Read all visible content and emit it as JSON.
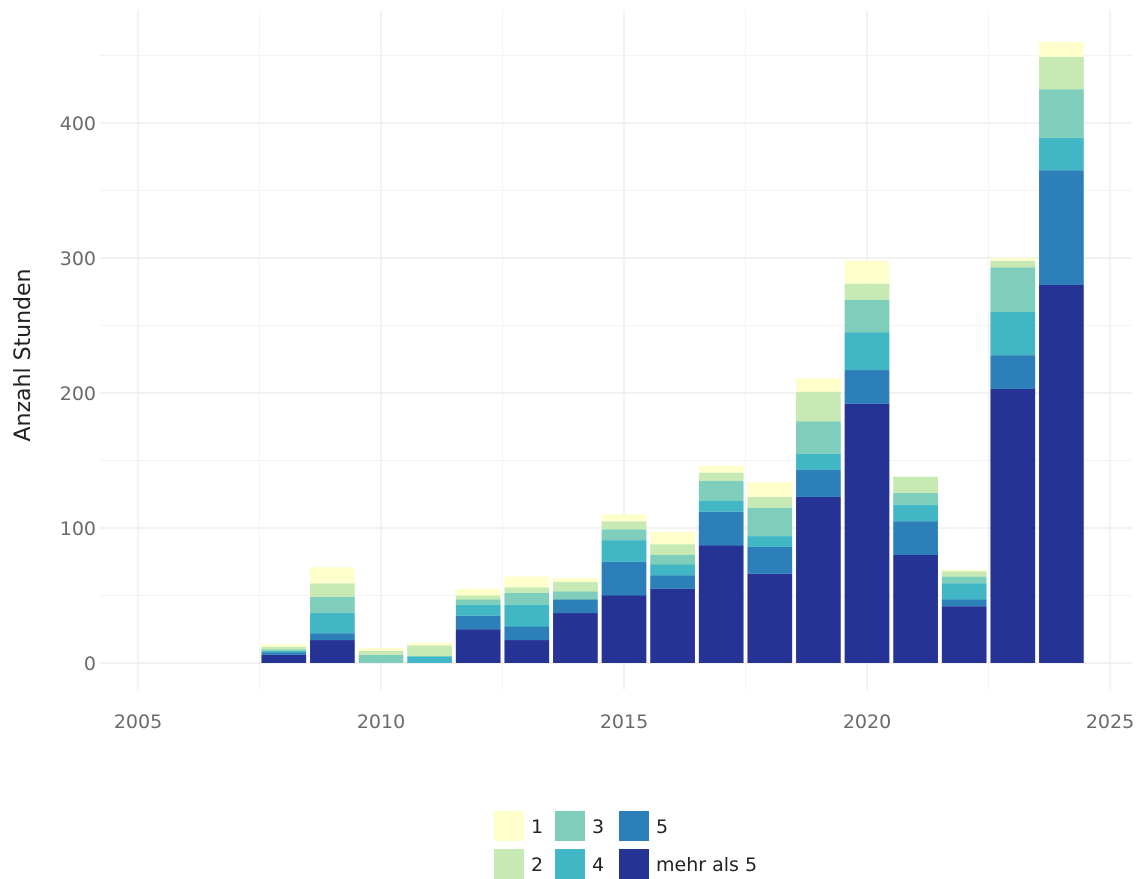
{
  "chart_data": {
    "type": "bar",
    "stacked": true,
    "ylabel": "Anzahl Stunden",
    "xlabel": "",
    "xlim": [
      2005,
      2025
    ],
    "ylim": [
      0,
      460
    ],
    "x_ticks": [
      "2005",
      "2010",
      "2015",
      "2020",
      "2025"
    ],
    "y_ticks": [
      "0",
      "100",
      "200",
      "300",
      "400"
    ],
    "grid": true,
    "legend_position": "bottom",
    "x": [
      2008,
      2009,
      2010,
      2011,
      2012,
      2013,
      2014,
      2015,
      2016,
      2017,
      2018,
      2019,
      2020,
      2021,
      2022,
      2023,
      2024
    ],
    "series": [
      {
        "name": "mehr als 5",
        "color": "#253494",
        "values": [
          6,
          17,
          0,
          0,
          25,
          17,
          37,
          50,
          55,
          87,
          66,
          123,
          192,
          80,
          42,
          203,
          280
        ]
      },
      {
        "name": "5",
        "color": "#2c7fb8",
        "values": [
          2,
          5,
          0,
          0,
          10,
          10,
          10,
          25,
          10,
          25,
          20,
          20,
          25,
          25,
          5,
          25,
          85
        ]
      },
      {
        "name": "4",
        "color": "#41b6c4",
        "values": [
          1,
          15,
          0,
          5,
          8,
          16,
          0,
          16,
          8,
          8,
          8,
          12,
          28,
          12,
          12,
          32,
          24
        ]
      },
      {
        "name": "3",
        "color": "#7fcdbb",
        "values": [
          1,
          12,
          6,
          0,
          4,
          9,
          6,
          8,
          7,
          15,
          21,
          24,
          24,
          9,
          5,
          33,
          36
        ]
      },
      {
        "name": "2",
        "color": "#c7e9b4",
        "values": [
          2,
          10,
          3,
          8,
          3,
          4,
          7,
          6,
          8,
          6,
          8,
          22,
          12,
          12,
          4,
          5,
          24
        ]
      },
      {
        "name": "1",
        "color": "#ffffcc",
        "values": [
          2,
          12,
          2,
          2,
          5,
          8,
          3,
          5,
          9,
          5,
          11,
          10,
          17,
          0,
          1,
          2,
          11
        ]
      }
    ]
  },
  "legend": {
    "items": [
      {
        "label": "1",
        "color": "#ffffcc"
      },
      {
        "label": "2",
        "color": "#c7e9b4"
      },
      {
        "label": "3",
        "color": "#7fcdbb"
      },
      {
        "label": "4",
        "color": "#41b6c4"
      },
      {
        "label": "5",
        "color": "#2c7fb8"
      },
      {
        "label": "mehr als 5",
        "color": "#253494"
      }
    ]
  }
}
